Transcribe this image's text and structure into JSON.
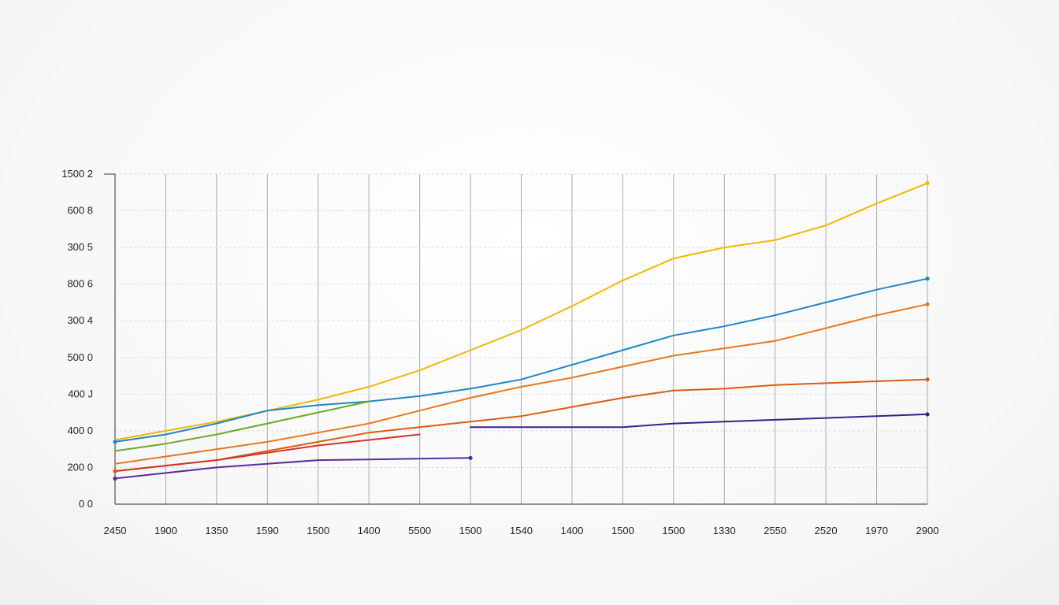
{
  "chart_data": {
    "type": "line",
    "title": "",
    "xlabel": "",
    "ylabel": "",
    "grid": true,
    "x_tick_labels": [
      "2450",
      "1900",
      "1350",
      "1590",
      "1500",
      "1400",
      "5500",
      "1500",
      "1540",
      "1400",
      "1500",
      "1500",
      "1330",
      "2550",
      "2520",
      "1970",
      "2900"
    ],
    "y_tick_labels": [
      "0 0",
      "200 0",
      "400 0",
      "400 J",
      "500 0",
      "300 4",
      "800 6",
      "300 5",
      "600 8",
      "1500 2"
    ],
    "x_index_range": [
      0,
      16
    ],
    "ylim": [
      0,
      9
    ],
    "series": [
      {
        "color": "#f2b705",
        "values": [
          1.75,
          2.0,
          2.25,
          2.55,
          2.85,
          3.2,
          3.65,
          4.2,
          4.75,
          5.4,
          6.1,
          6.7,
          7.0,
          7.2,
          7.6,
          8.2,
          8.75
        ],
        "end_marker": true,
        "start_marker": false
      },
      {
        "color": "#1f86c6",
        "values": [
          1.7,
          1.9,
          2.2,
          2.55,
          2.7,
          2.8,
          2.95,
          3.15,
          3.4,
          3.8,
          4.2,
          4.6,
          4.85,
          5.15,
          5.5,
          5.85,
          6.15
        ],
        "end_marker": true,
        "start_marker": true
      },
      {
        "color": "#6aaa2a",
        "values": [
          1.45,
          1.65,
          1.9,
          2.2,
          2.5,
          2.8
        ],
        "end_marker": false,
        "start_marker": false
      },
      {
        "color": "#e8781e",
        "values": [
          1.1,
          1.3,
          1.5,
          1.7,
          1.95,
          2.2,
          2.55,
          2.9,
          3.2,
          3.45,
          3.75,
          4.05,
          4.25,
          4.45,
          4.8,
          5.15,
          5.45
        ],
        "end_marker": true,
        "start_marker": false
      },
      {
        "color": "#e05a10",
        "values": [
          0.9,
          1.05,
          1.2,
          1.45,
          1.7,
          1.95,
          2.1,
          2.25,
          2.4,
          2.65,
          2.9,
          3.1,
          3.15,
          3.25,
          3.3,
          3.35,
          3.4
        ],
        "end_marker": true,
        "start_marker": true
      },
      {
        "color": "#d3342a",
        "values": [
          0.9,
          1.05,
          1.2,
          1.4,
          1.6,
          1.75,
          1.9
        ],
        "end_marker": false,
        "start_marker": false
      },
      {
        "color": "#5b2c9e",
        "values": [
          0.7,
          0.85,
          1.0,
          1.1,
          1.2,
          1.22,
          1.24,
          1.26
        ],
        "end_marker": true,
        "start_marker": true
      },
      {
        "color": "#3b1f8c",
        "values": [
          null,
          null,
          null,
          null,
          null,
          null,
          null,
          2.1,
          2.1,
          2.1,
          2.1,
          2.2,
          2.25,
          2.3,
          2.35,
          2.4,
          2.45
        ],
        "end_marker": true,
        "start_marker": false
      }
    ]
  }
}
